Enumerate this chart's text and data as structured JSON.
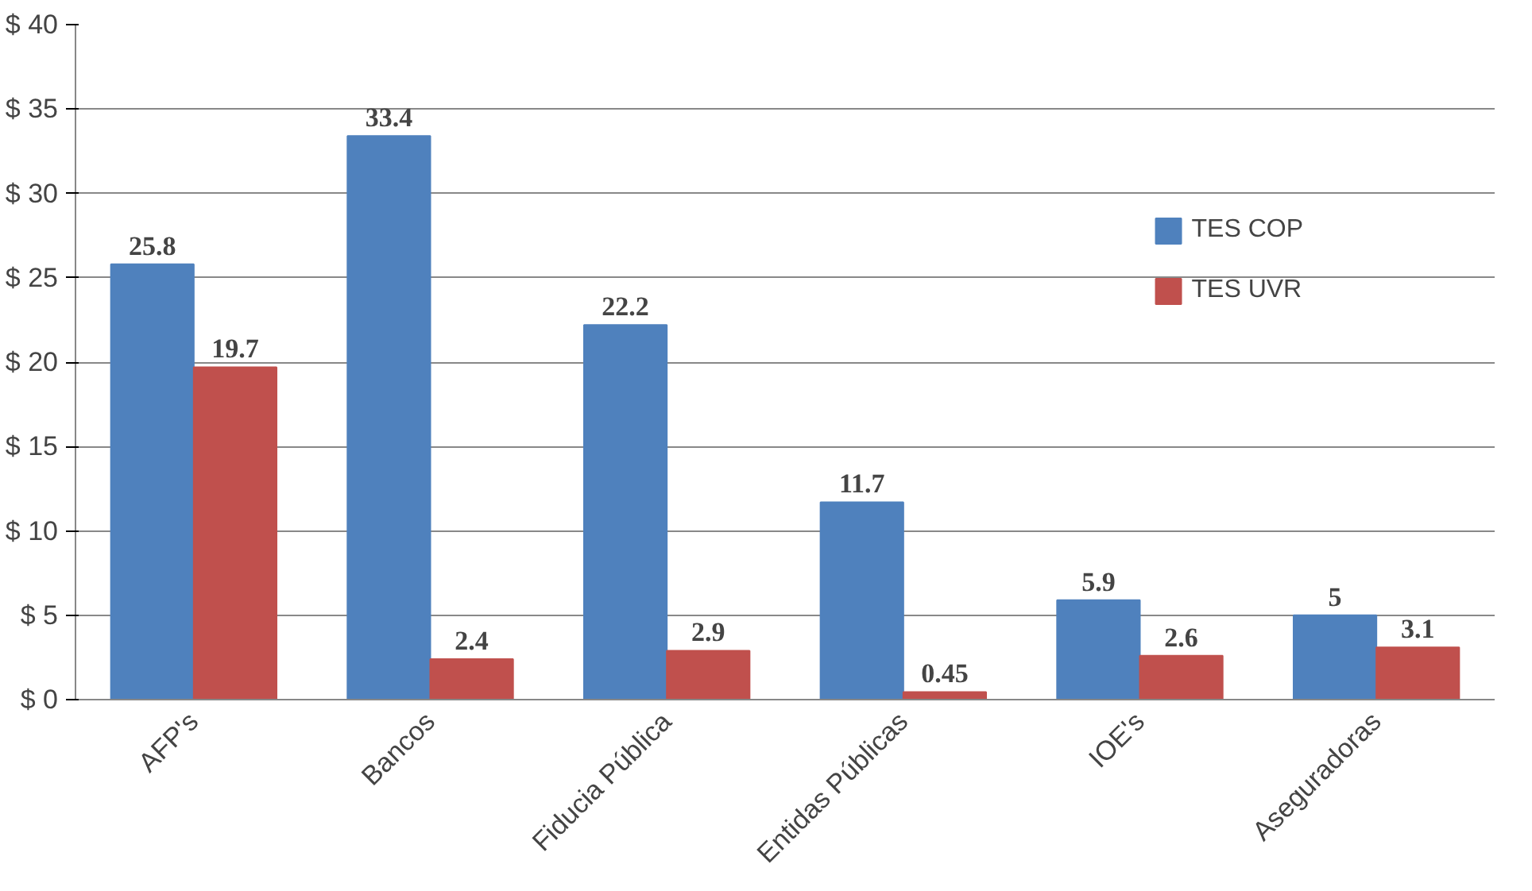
{
  "chart_data": {
    "type": "bar",
    "categories": [
      "AFP's",
      "Bancos",
      "Fiducia Pública",
      "Entidas Públicas",
      "IOE's",
      "Aseguradoras"
    ],
    "series": [
      {
        "name": "TES COP",
        "color": "#4f81bd",
        "values": [
          25.8,
          33.4,
          22.2,
          11.7,
          5.9,
          5
        ]
      },
      {
        "name": "TES UVR",
        "color": "#c0504d",
        "values": [
          19.7,
          2.4,
          2.9,
          0.45,
          2.6,
          3.1
        ]
      }
    ],
    "ylim": [
      0,
      40
    ],
    "yticks": [
      {
        "value": 0,
        "label": "$ 0"
      },
      {
        "value": 5,
        "label": "$ 5"
      },
      {
        "value": 10,
        "label": "$ 10"
      },
      {
        "value": 15,
        "label": "$ 15"
      },
      {
        "value": 20,
        "label": "$ 20"
      },
      {
        "value": 25,
        "label": "$ 25"
      },
      {
        "value": 30,
        "label": "$ 30"
      },
      {
        "value": 35,
        "label": "$ 35"
      },
      {
        "value": 40,
        "label": "$ 40"
      }
    ],
    "grid": "y",
    "legend": "top right",
    "data_labels": true
  }
}
